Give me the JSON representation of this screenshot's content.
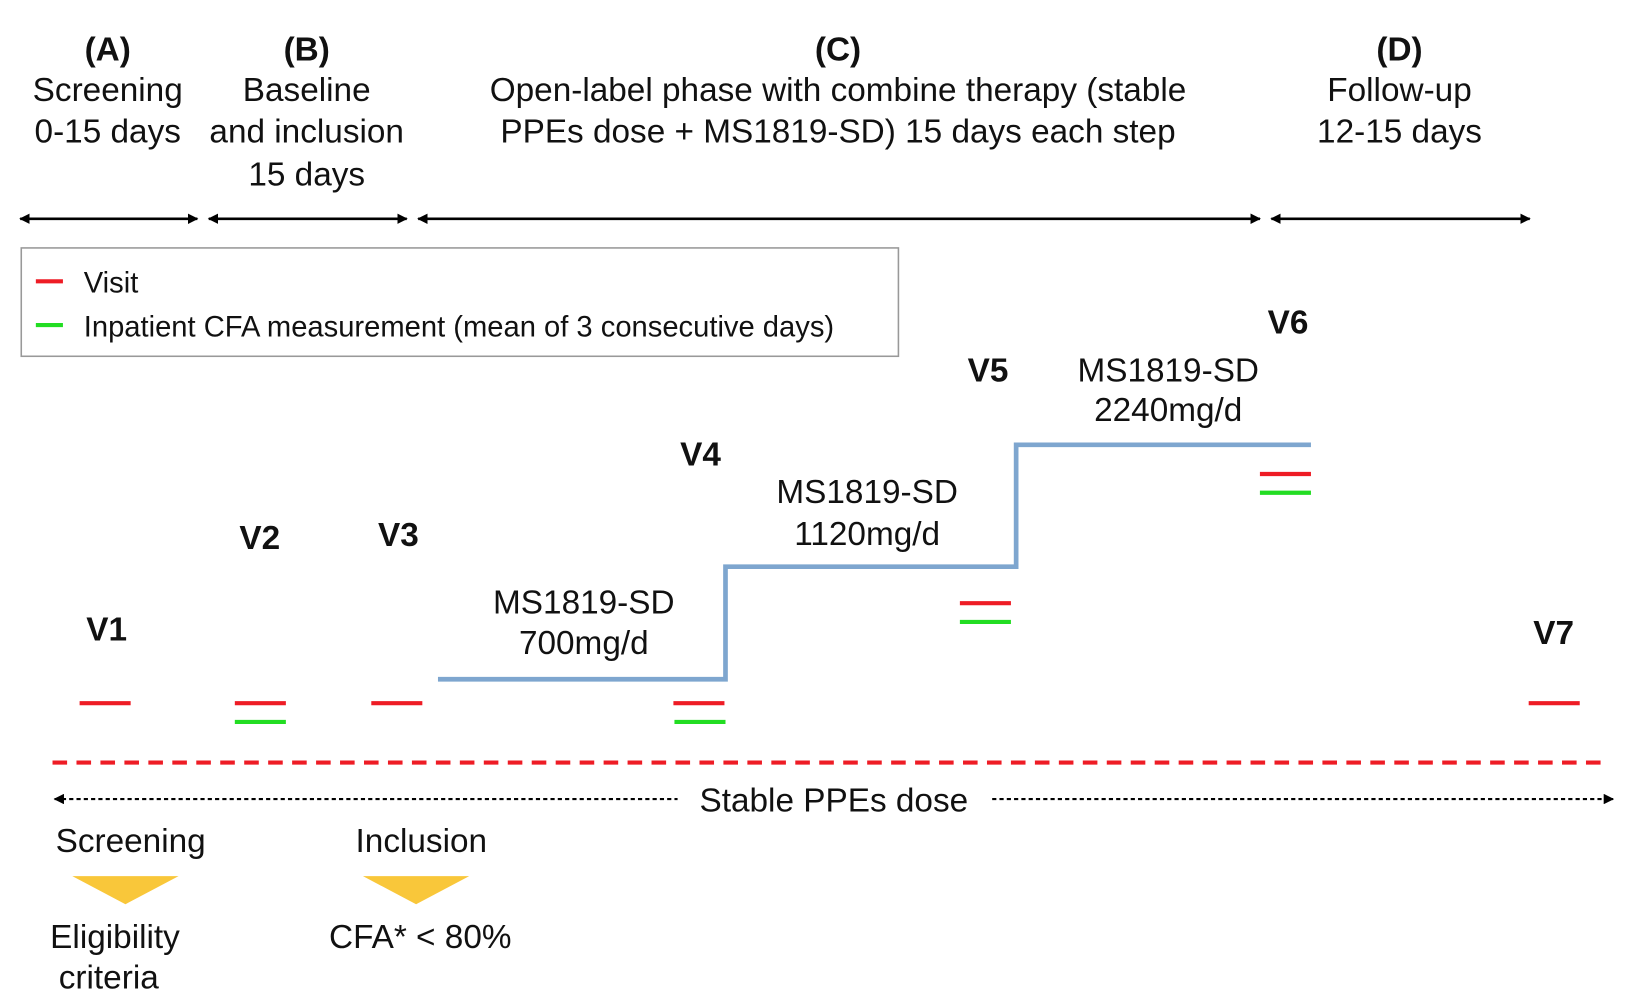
{
  "phases": [
    {
      "letter": "(A)",
      "lines": [
        "Screening",
        "0-15 days"
      ]
    },
    {
      "letter": "(B)",
      "lines": [
        "Baseline",
        "and inclusion",
        "15 days"
      ]
    },
    {
      "letter": "(C)",
      "lines": [
        "Open-label phase with combine therapy (stable",
        "PPEs dose + MS1819-SD) 15 days each step"
      ]
    },
    {
      "letter": "(D)",
      "lines": [
        "Follow-up",
        "12-15 days"
      ]
    }
  ],
  "legend": {
    "visit": "Visit",
    "cfa": "Inpatient CFA measurement (mean of 3 consecutive days)"
  },
  "visits": [
    "V1",
    "V2",
    "V3",
    "V4",
    "V5",
    "V6",
    "V7"
  ],
  "doses": [
    {
      "name": "MS1819-SD",
      "dose": "700mg/d"
    },
    {
      "name": "MS1819-SD",
      "dose": "1120mg/d"
    },
    {
      "name": "MS1819-SD",
      "dose": "2240mg/d"
    }
  ],
  "stable_label": "Stable PPEs dose",
  "milestones": [
    {
      "title": "Screening",
      "lines": [
        "Eligibility",
        "criteria"
      ]
    },
    {
      "title": "Inclusion",
      "lines": [
        "CFA* < 80%"
      ]
    }
  ],
  "colors": {
    "visit": "#ee1c25",
    "cfa": "#22dd22",
    "dose_line": "#7ea6cf",
    "triangle": "#f9c73a",
    "dashed_red": "#ee1c25"
  }
}
